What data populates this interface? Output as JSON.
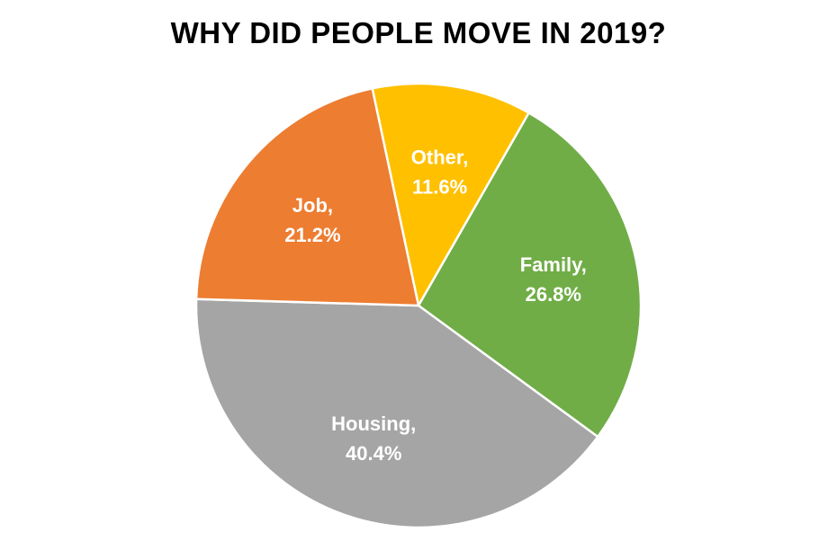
{
  "chart_data": {
    "type": "pie",
    "title": "WHY DID PEOPLE MOVE IN 2019?",
    "start_angle_deg": -12,
    "direction": "clockwise",
    "slices": [
      {
        "name": "Other",
        "value": 11.6,
        "label_line1": "Other,",
        "label_line2": "11.6%",
        "color": "#FFC000"
      },
      {
        "name": "Family",
        "value": 26.8,
        "label_line1": "Family,",
        "label_line2": "26.8%",
        "color": "#70AD47"
      },
      {
        "name": "Housing",
        "value": 40.4,
        "label_line1": "Housing,",
        "label_line2": "40.4%",
        "color": "#A5A5A5"
      },
      {
        "name": "Job",
        "value": 21.2,
        "label_line1": "Job,",
        "label_line2": "21.2%",
        "color": "#ED7D31"
      }
    ]
  }
}
